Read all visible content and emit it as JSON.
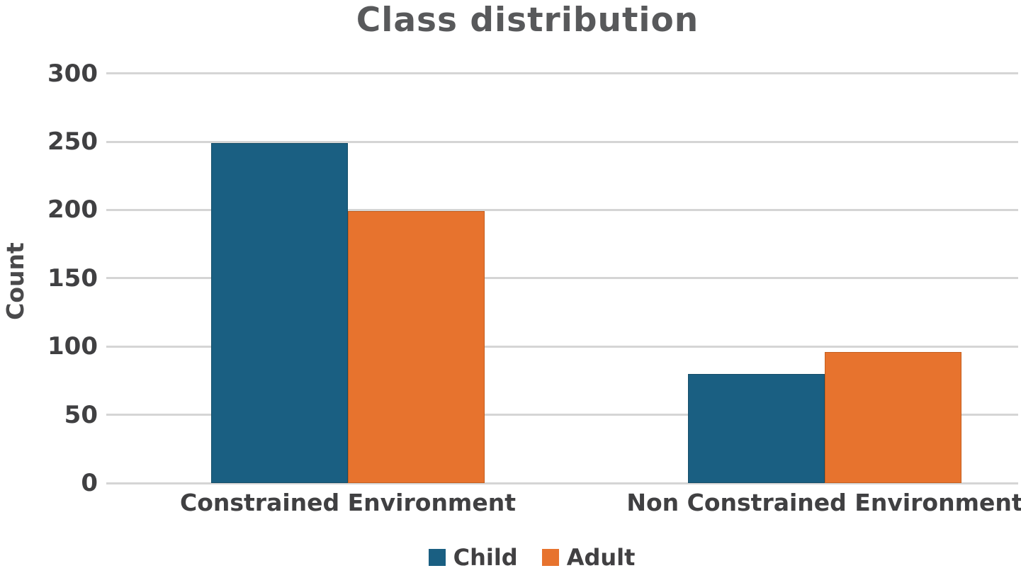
{
  "chart_data": {
    "type": "bar",
    "title": "Class distribution",
    "xlabel": "",
    "ylabel": "Count",
    "categories": [
      "Constrained Environment",
      "Non Constrained Environment"
    ],
    "series": [
      {
        "name": "Child",
        "color": "#1a5f82",
        "edge_color": "#144d68",
        "values": [
          249,
          80
        ]
      },
      {
        "name": "Adult",
        "color": "#e7732e",
        "edge_color": "#c55f1e",
        "values": [
          199,
          96
        ]
      }
    ],
    "ylim": [
      0,
      300
    ],
    "yticks": [
      0,
      50,
      100,
      150,
      200,
      250,
      300
    ],
    "grid": "horizontal",
    "gridline_color": "#d5d5d5",
    "legend_position": "bottom-center",
    "title_color": "#58595b",
    "axis_text_color": "#404042"
  }
}
